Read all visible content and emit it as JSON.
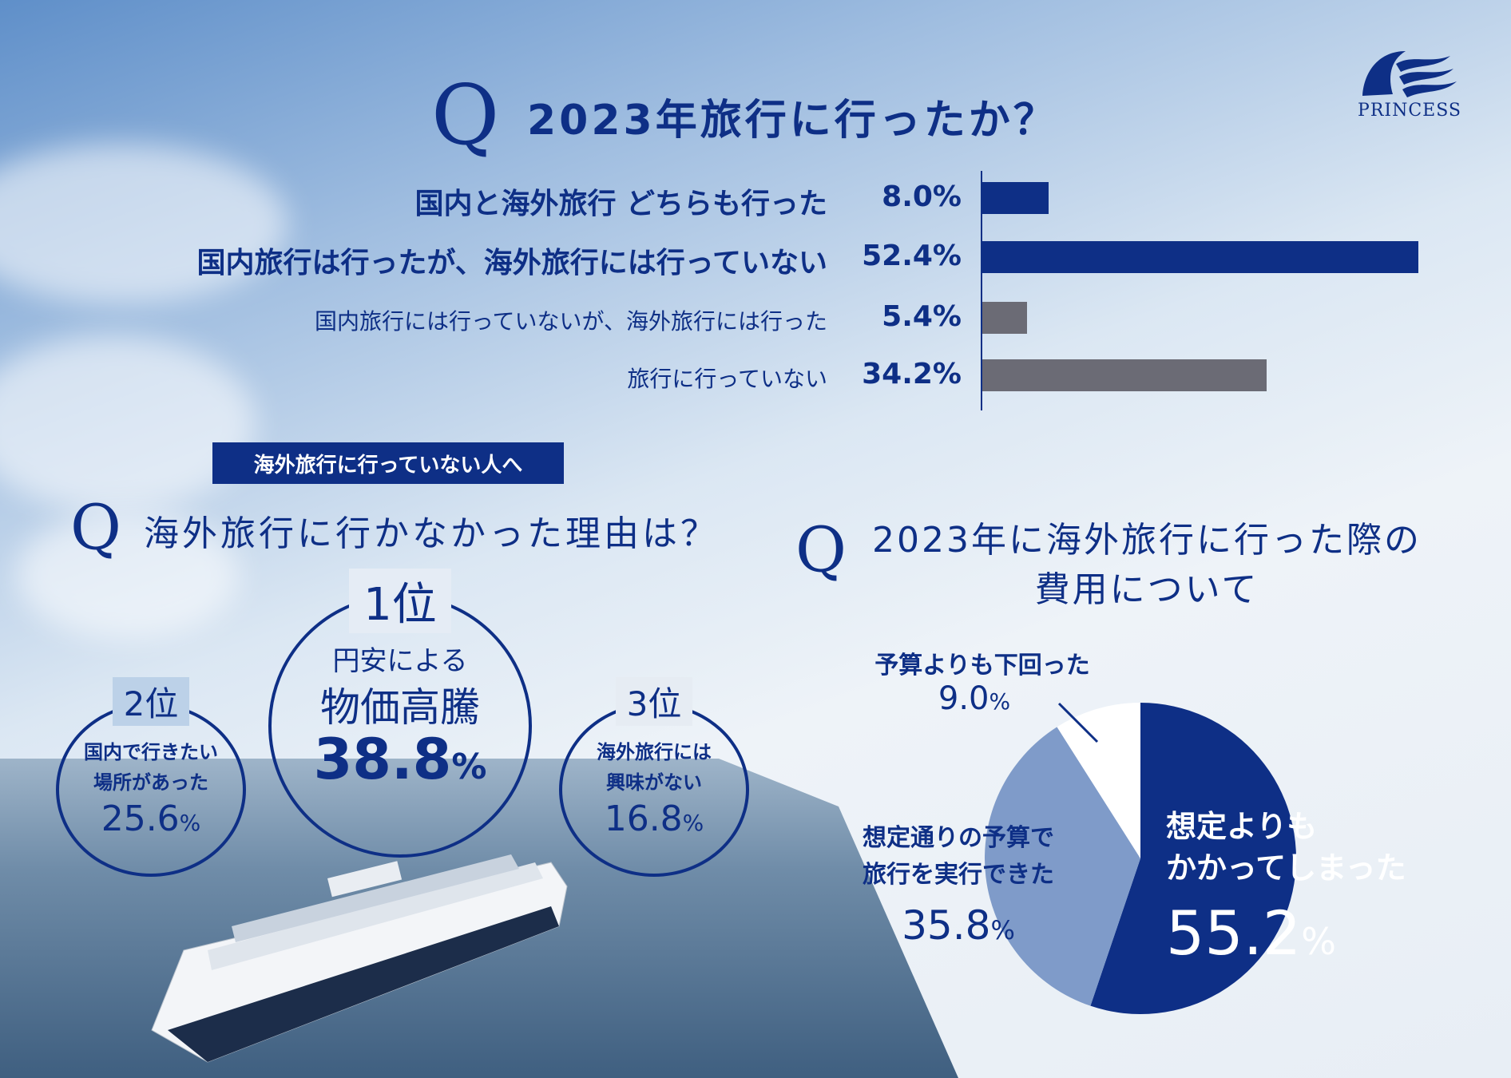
{
  "brand": {
    "logo_text": "PRINCESS",
    "accent": "#0e2f86",
    "gray": "#6b6b75"
  },
  "q1": {
    "letter": "Q",
    "title": "2023年旅行に行ったか？"
  },
  "q2": {
    "badge": "海外旅行に行っていない人へ",
    "letter": "Q",
    "title": "海外旅行に行かなかった理由は？",
    "ranks": [
      {
        "rank": "1位",
        "label1": "円安による",
        "label2": "物価高騰",
        "value": "38.8",
        "unit": "%"
      },
      {
        "rank": "2位",
        "label1": "国内で行きたい",
        "label2": "場所があった",
        "value": "25.6",
        "unit": "%"
      },
      {
        "rank": "3位",
        "label1": "海外旅行には",
        "label2": "興味がない",
        "value": "16.8",
        "unit": "%"
      }
    ]
  },
  "q3": {
    "letter": "Q",
    "title_line1": "2023年に海外旅行に行った際の",
    "title_line2": "費用について"
  },
  "chart_data": [
    {
      "type": "bar",
      "orientation": "horizontal",
      "categories": [
        "国内と海外旅行 どちらも行った",
        "国内旅行は行ったが、海外旅行には行っていない",
        "国内旅行には行っていないが、海外旅行には行った",
        "旅行に行っていない"
      ],
      "values": [
        8.0,
        52.4,
        5.4,
        34.2
      ],
      "value_labels": [
        "8.0%",
        "52.4%",
        "5.4%",
        "34.2%"
      ],
      "colors": [
        "#0e2f86",
        "#0e2f86",
        "#6b6b75",
        "#6b6b75"
      ],
      "xlim": [
        0,
        52.4
      ]
    },
    {
      "type": "pie",
      "slices": [
        {
          "label1": "想定よりも",
          "label2": "かかってしまった",
          "value": 55.2,
          "display": "55.2",
          "unit": "%",
          "color": "#0e2f86"
        },
        {
          "label1": "想定通りの予算で",
          "label2": "旅行を実行できた",
          "value": 35.8,
          "display": "35.8",
          "unit": "%",
          "color": "#7f9bc9"
        },
        {
          "label1": "予算よりも下回った",
          "label2": "",
          "value": 9.0,
          "display": "9.0",
          "unit": "%",
          "color": "#ffffff"
        }
      ]
    }
  ]
}
